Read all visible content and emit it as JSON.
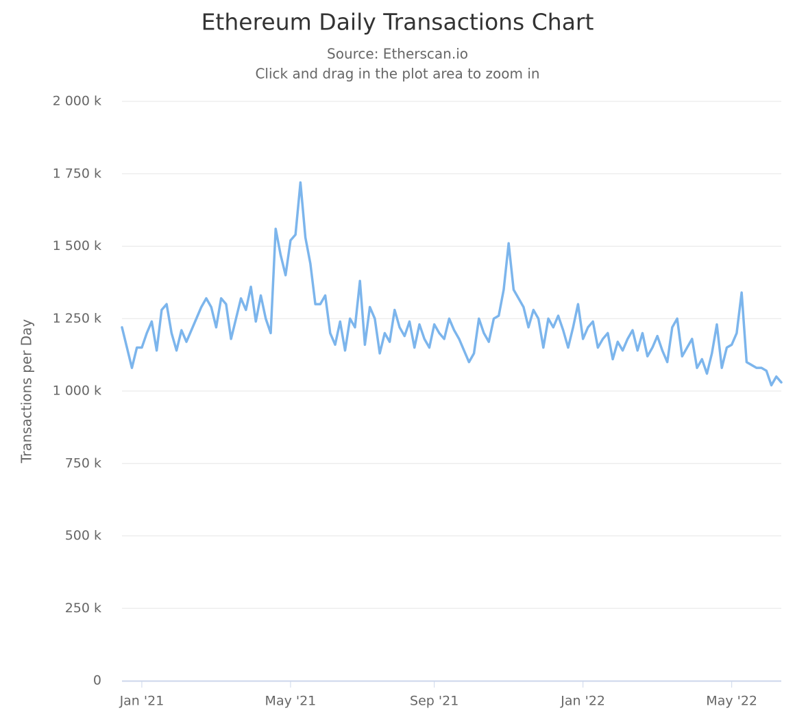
{
  "chart_data": {
    "type": "line",
    "title": "Ethereum Daily Transactions Chart",
    "subtitle": "Source: Etherscan.io",
    "instruction": "Click and drag in the plot area to zoom in",
    "y_label": "Transactions per Day",
    "color": "#7cb5ec",
    "grid": true,
    "ylim": [
      0,
      2000000
    ],
    "yticks": [
      0,
      {
        "value": 250000,
        "label": "250 k"
      },
      {
        "value": 500000,
        "label": "500 k"
      },
      {
        "value": 750000,
        "label": "750 k"
      },
      {
        "value": 1000000,
        "label": "1 000 k"
      },
      {
        "value": 1250000,
        "label": "1 250 k"
      },
      {
        "value": 1500000,
        "label": "1 500 k"
      },
      {
        "value": 1750000,
        "label": "1 750 k"
      },
      {
        "value": 2000000,
        "label": "2 000 k"
      }
    ],
    "categories": [
      null,
      null,
      null,
      null,
      "Jan '21",
      null,
      null,
      null,
      null,
      null,
      null,
      null,
      null,
      null,
      null,
      null,
      null,
      null,
      null,
      null,
      null,
      null,
      null,
      null,
      null,
      null,
      null,
      null,
      null,
      null,
      null,
      null,
      null,
      null,
      "May '21",
      null,
      null,
      null,
      null,
      null,
      null,
      null,
      null,
      null,
      null,
      null,
      null,
      null,
      null,
      null,
      null,
      null,
      null,
      null,
      null,
      null,
      null,
      null,
      null,
      null,
      null,
      null,
      null,
      "Sep '21",
      null,
      null,
      null,
      null,
      null,
      null,
      null,
      null,
      null,
      null,
      null,
      null,
      null,
      null,
      null,
      null,
      null,
      null,
      null,
      null,
      null,
      null,
      null,
      null,
      null,
      null,
      null,
      null,
      null,
      "Jan '22",
      null,
      null,
      null,
      null,
      null,
      null,
      null,
      null,
      null,
      null,
      null,
      null,
      null,
      null,
      null,
      null,
      null,
      null,
      null,
      null,
      null,
      null,
      null,
      null,
      null,
      null,
      null,
      null,
      null,
      "May '22",
      null,
      null,
      null,
      null,
      null,
      null,
      null,
      null,
      null,
      null
    ],
    "values": [
      1220000,
      1150000,
      1080000,
      1150000,
      1150000,
      1200000,
      1240000,
      1140000,
      1280000,
      1300000,
      1200000,
      1140000,
      1210000,
      1170000,
      1210000,
      1250000,
      1290000,
      1320000,
      1290000,
      1220000,
      1320000,
      1300000,
      1180000,
      1250000,
      1320000,
      1280000,
      1360000,
      1240000,
      1330000,
      1250000,
      1200000,
      1560000,
      1470000,
      1400000,
      1520000,
      1540000,
      1720000,
      1530000,
      1440000,
      1300000,
      1300000,
      1330000,
      1200000,
      1160000,
      1240000,
      1140000,
      1250000,
      1220000,
      1380000,
      1160000,
      1290000,
      1250000,
      1130000,
      1200000,
      1170000,
      1280000,
      1220000,
      1190000,
      1240000,
      1150000,
      1230000,
      1180000,
      1150000,
      1230000,
      1200000,
      1180000,
      1250000,
      1210000,
      1180000,
      1140000,
      1100000,
      1130000,
      1250000,
      1200000,
      1170000,
      1250000,
      1260000,
      1350000,
      1510000,
      1350000,
      1320000,
      1290000,
      1220000,
      1280000,
      1250000,
      1150000,
      1250000,
      1220000,
      1260000,
      1210000,
      1150000,
      1220000,
      1300000,
      1180000,
      1220000,
      1240000,
      1150000,
      1180000,
      1200000,
      1110000,
      1170000,
      1140000,
      1180000,
      1210000,
      1140000,
      1200000,
      1120000,
      1150000,
      1190000,
      1140000,
      1100000,
      1220000,
      1250000,
      1120000,
      1150000,
      1180000,
      1080000,
      1110000,
      1060000,
      1130000,
      1230000,
      1080000,
      1150000,
      1160000,
      1200000,
      1340000,
      1100000,
      1090000,
      1080000,
      1080000,
      1070000,
      1020000,
      1050000,
      1030000
    ]
  }
}
